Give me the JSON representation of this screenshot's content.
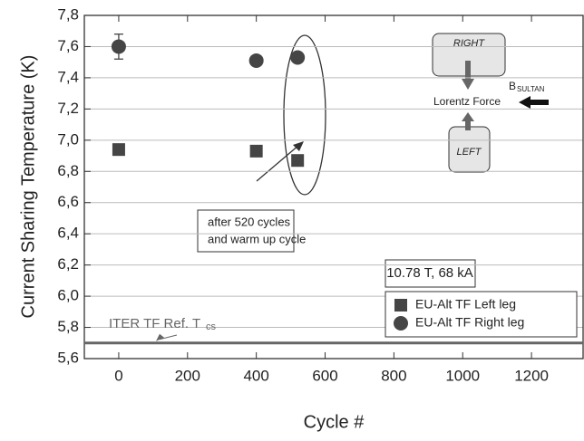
{
  "chart_data": {
    "type": "scatter",
    "xlabel": "Cycle #",
    "ylabel": "Current Sharing Temperature (K)",
    "xlim": [
      -100,
      1350
    ],
    "ylim": [
      5.6,
      7.8
    ],
    "xticks": [
      0,
      200,
      400,
      600,
      800,
      1000,
      1200
    ],
    "yticks": [
      {
        "value": 5.6,
        "label": "5,6"
      },
      {
        "value": 5.8,
        "label": "5,8"
      },
      {
        "value": 6.0,
        "label": "6,0"
      },
      {
        "value": 6.2,
        "label": "6,2"
      },
      {
        "value": 6.4,
        "label": "6,4"
      },
      {
        "value": 6.6,
        "label": "6,6"
      },
      {
        "value": 6.8,
        "label": "6,8"
      },
      {
        "value": 7.0,
        "label": "7,0"
      },
      {
        "value": 7.2,
        "label": "7,2"
      },
      {
        "value": 7.4,
        "label": "7,4"
      },
      {
        "value": 7.6,
        "label": "7,6"
      },
      {
        "value": 7.8,
        "label": "7,8"
      }
    ],
    "grid": true,
    "legend": "lower right",
    "series": [
      {
        "name": "EU-Alt TF Left leg",
        "marker": "square",
        "color": "#454545",
        "x": [
          0,
          400,
          520
        ],
        "values": [
          6.94,
          6.93,
          6.87
        ]
      },
      {
        "name": "EU-Alt TF Right leg",
        "marker": "circle",
        "color": "#454545",
        "x": [
          0,
          400,
          520
        ],
        "values": [
          7.6,
          7.51,
          7.53
        ],
        "errors": [
          0.08,
          null,
          null
        ]
      }
    ],
    "ref_line": {
      "value": 5.7,
      "label": "ITER TF Ref. T",
      "label_sub": "cs",
      "color": "#666666"
    },
    "annotations": {
      "cycles": [
        "after 520 cycles",
        "and warm up cycle"
      ],
      "condition": "10.78 T, 68 kA"
    },
    "inset": {
      "right": "RIGHT",
      "left": "LEFT",
      "force": "Lorentz Force",
      "field": "B",
      "field_sub": "SULTAN"
    }
  }
}
